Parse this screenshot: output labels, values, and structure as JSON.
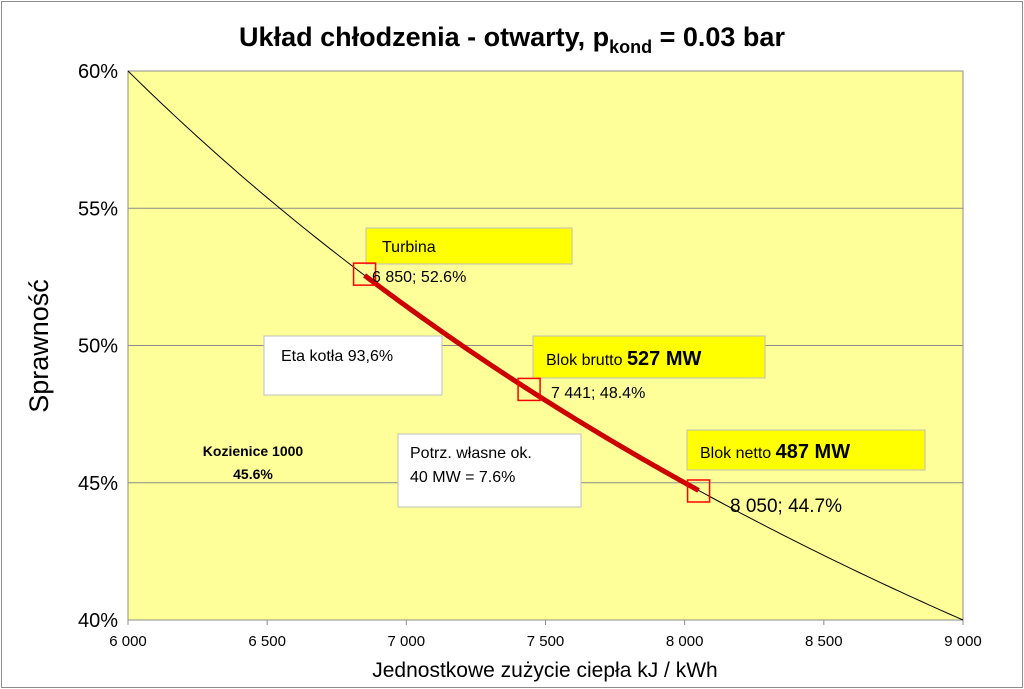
{
  "chart_data": {
    "type": "line",
    "title": {
      "main": "Układ chłodzenia - otwarty, p",
      "subscript": "kond",
      "suffix": " = 0.03 bar"
    },
    "xlabel": "Jednostkowe zużycie ciepła kJ / kWh",
    "ylabel": "Sprawność",
    "xlim": [
      6000,
      9000
    ],
    "ylim": [
      0.4,
      0.6
    ],
    "x_ticks": [
      6000,
      6500,
      7000,
      7500,
      8000,
      8500,
      9000
    ],
    "x_tick_labels": [
      "6 000",
      "6 500",
      "7 000",
      "7 500",
      "8 000",
      "8 500",
      "9 000"
    ],
    "y_ticks": [
      0.4,
      0.45,
      0.5,
      0.55,
      0.6
    ],
    "y_tick_labels": [
      "40%",
      "45%",
      "50%",
      "55%",
      "60%"
    ],
    "grid": true,
    "plot_background": "#ffff99",
    "series": [
      {
        "color": "#000000",
        "relation": "efficiency = 3600 / heat_rate",
        "x": [
          6000,
          9000
        ]
      },
      {
        "color": "#cc0000",
        "relation": "efficiency = 3600 / heat_rate",
        "x": [
          6850,
          8050
        ]
      }
    ],
    "points": [
      {
        "x": 6850,
        "y": 0.526,
        "label": "6 850; 52.6%"
      },
      {
        "x": 7441,
        "y": 0.484,
        "label": "7 441; 48.4%"
      },
      {
        "x": 8050,
        "y": 0.447,
        "label": "8 050; 44.7%"
      }
    ],
    "annotations": {
      "turbina": "Turbina",
      "brutto_prefix": "Blok brutto ",
      "brutto_value": "527 MW",
      "netto_prefix": "Blok netto ",
      "netto_value": "487 MW",
      "eta": "Eta kotła 93,6%",
      "potrz_line1": "Potrz. własne ok.",
      "potrz_line2": "40 MW = 7.6%",
      "kozienice_line1": "Kozienice 1000",
      "kozienice_line2": "45.6%"
    },
    "colors": {
      "highlight_box": "#ffff00",
      "marker": "#ff0000"
    }
  }
}
